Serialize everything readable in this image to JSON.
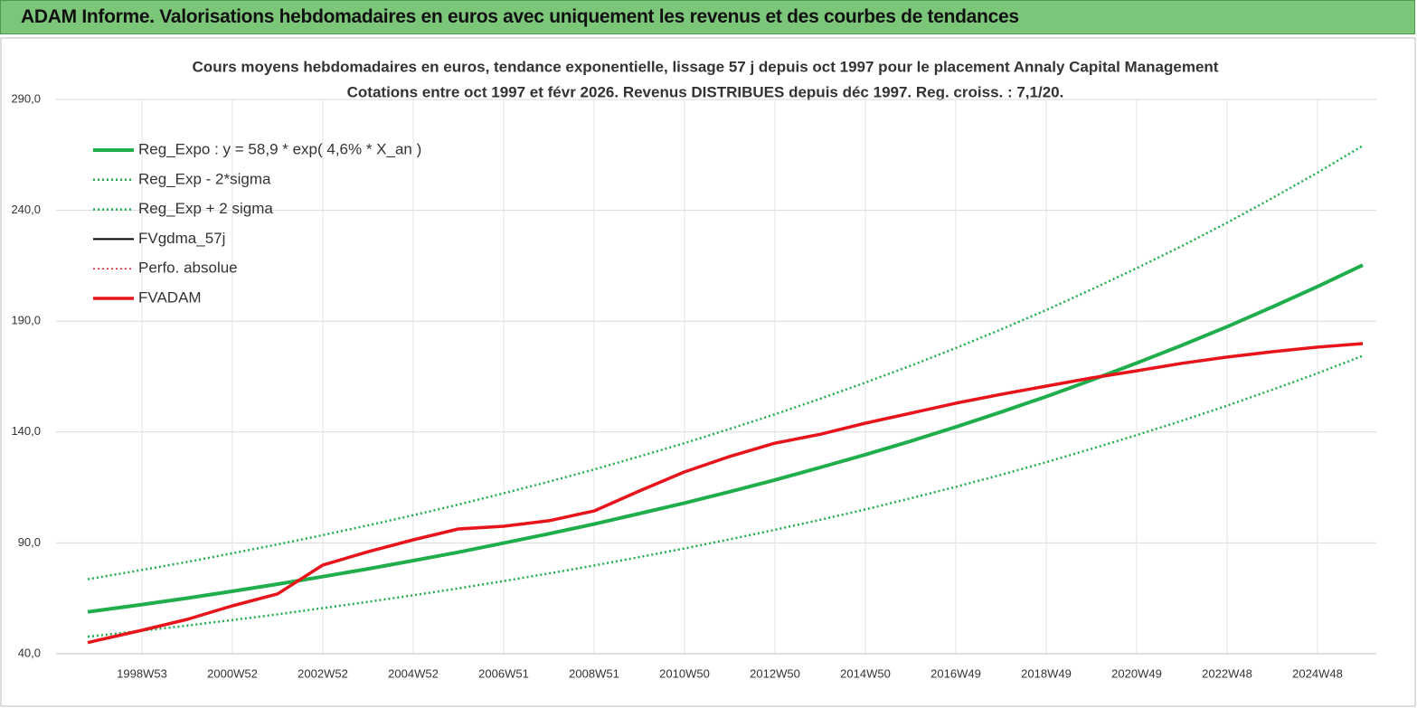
{
  "header": {
    "title": "ADAM Informe. Valorisations hebdomadaires en euros avec uniquement les revenus et des courbes de tendances"
  },
  "chart_data": {
    "type": "line",
    "title": "Cours moyens hebdomadaires en euros, tendance exponentielle, lissage 57 j depuis oct 1997 pour le placement Annaly Capital Management",
    "subtitle": "Cotations entre oct 1997 et févr 2026. Revenus DISTRIBUES depuis déc 1997. Reg. croiss. : 7,1/20.",
    "x": [
      1997.8,
      1998,
      1999,
      2000,
      2001,
      2002,
      2003,
      2004,
      2005,
      2006,
      2007,
      2008,
      2009,
      2010,
      2011,
      2012,
      2013,
      2014,
      2015,
      2016,
      2017,
      2018,
      2019,
      2020,
      2021,
      2022,
      2023,
      2024,
      2025,
      2026
    ],
    "xlim": [
      1997.1,
      2026.3
    ],
    "xticks": [
      {
        "value": 1999,
        "label": "1998W53"
      },
      {
        "value": 2001,
        "label": "2000W52"
      },
      {
        "value": 2003,
        "label": "2002W52"
      },
      {
        "value": 2005,
        "label": "2004W52"
      },
      {
        "value": 2007,
        "label": "2006W51"
      },
      {
        "value": 2009,
        "label": "2008W51"
      },
      {
        "value": 2011,
        "label": "2010W50"
      },
      {
        "value": 2013,
        "label": "2012W50"
      },
      {
        "value": 2015,
        "label": "2014W50"
      },
      {
        "value": 2017,
        "label": "2016W49"
      },
      {
        "value": 2019,
        "label": "2018W49"
      },
      {
        "value": 2021,
        "label": "2020W49"
      },
      {
        "value": 2023,
        "label": "2022W48"
      },
      {
        "value": 2025,
        "label": "2024W48"
      }
    ],
    "ylim": [
      40,
      290
    ],
    "yticks": [
      {
        "value": 40,
        "label": "40,0"
      },
      {
        "value": 90,
        "label": "90,0"
      },
      {
        "value": 140,
        "label": "140,0"
      },
      {
        "value": 190,
        "label": "190,0"
      },
      {
        "value": 240,
        "label": "240,0"
      },
      {
        "value": 290,
        "label": "290,0"
      }
    ],
    "grid": true,
    "legend": "upper left",
    "series": [
      {
        "name": "Reg_Expo : y = 58,9 * exp( 4,6% *  X_an )",
        "color": "#1fae4b",
        "style": "solid",
        "width": 4,
        "values": [
          58.9,
          59.4,
          62.2,
          65.1,
          68.2,
          71.4,
          74.8,
          78.3,
          82.0,
          85.8,
          89.9,
          94.1,
          98.5,
          103.2,
          108.0,
          113.1,
          118.4,
          124.0,
          129.8,
          135.9,
          142.3,
          149.0,
          156.0,
          163.4,
          171.1,
          179.1,
          187.5,
          196.4,
          205.6,
          215.3
        ]
      },
      {
        "name": "Reg_Exp - 2*sigma",
        "color": "#1fae4b",
        "style": "dotted",
        "width": 2.5,
        "values": [
          47.7,
          48.1,
          50.4,
          52.7,
          55.2,
          57.8,
          60.6,
          63.4,
          66.4,
          69.5,
          72.8,
          76.2,
          79.8,
          83.6,
          87.5,
          91.6,
          95.9,
          100.4,
          105.1,
          110.1,
          115.3,
          120.7,
          126.4,
          132.4,
          138.6,
          145.1,
          151.9,
          159.1,
          166.5,
          174.4
        ]
      },
      {
        "name": "Reg_Exp + 2 sigma",
        "color": "#1fae4b",
        "style": "dotted",
        "width": 2.5,
        "values": [
          73.6,
          74.3,
          77.8,
          81.4,
          85.3,
          89.3,
          93.5,
          97.9,
          102.5,
          107.3,
          112.4,
          117.6,
          123.1,
          129.0,
          135.0,
          141.4,
          148.0,
          155.0,
          162.3,
          169.9,
          177.9,
          186.3,
          195.0,
          204.3,
          213.9,
          223.9,
          234.4,
          245.5,
          257.0,
          269.1
        ]
      },
      {
        "name": "FVgdma_57j",
        "color": "#000000",
        "style": "solid",
        "width": 2,
        "values": [
          45,
          46,
          50.6,
          55.5,
          61.6,
          67,
          80,
          86,
          91.4,
          96.3,
          97.5,
          100,
          104.4,
          113.4,
          122,
          129,
          135,
          139,
          144,
          148.5,
          153,
          157,
          160.7,
          164.4,
          167.6,
          171,
          173.8,
          176.2,
          178.3,
          179.9
        ]
      },
      {
        "name": "Perfo. absolue",
        "color": "#e8141b",
        "style": "dotted",
        "width": 1.5,
        "values": [
          45,
          46,
          50.6,
          55.5,
          61.6,
          67,
          80,
          86,
          91.4,
          96.3,
          97.5,
          100,
          104.4,
          113.4,
          122,
          129,
          135,
          139,
          144,
          148.5,
          153,
          157,
          160.7,
          164.4,
          167.6,
          171,
          173.8,
          176.2,
          178.3,
          179.9
        ]
      },
      {
        "name": "FVADAM",
        "color": "#e8141b",
        "style": "solid",
        "width": 3.5,
        "values": [
          45,
          46,
          50.6,
          55.5,
          61.6,
          67,
          80,
          86,
          91.4,
          96.3,
          97.5,
          100,
          104.4,
          113.4,
          122,
          129,
          135,
          139,
          144,
          148.5,
          153,
          157,
          160.7,
          164.4,
          167.6,
          171,
          173.8,
          176.2,
          178.3,
          179.9
        ]
      }
    ]
  }
}
